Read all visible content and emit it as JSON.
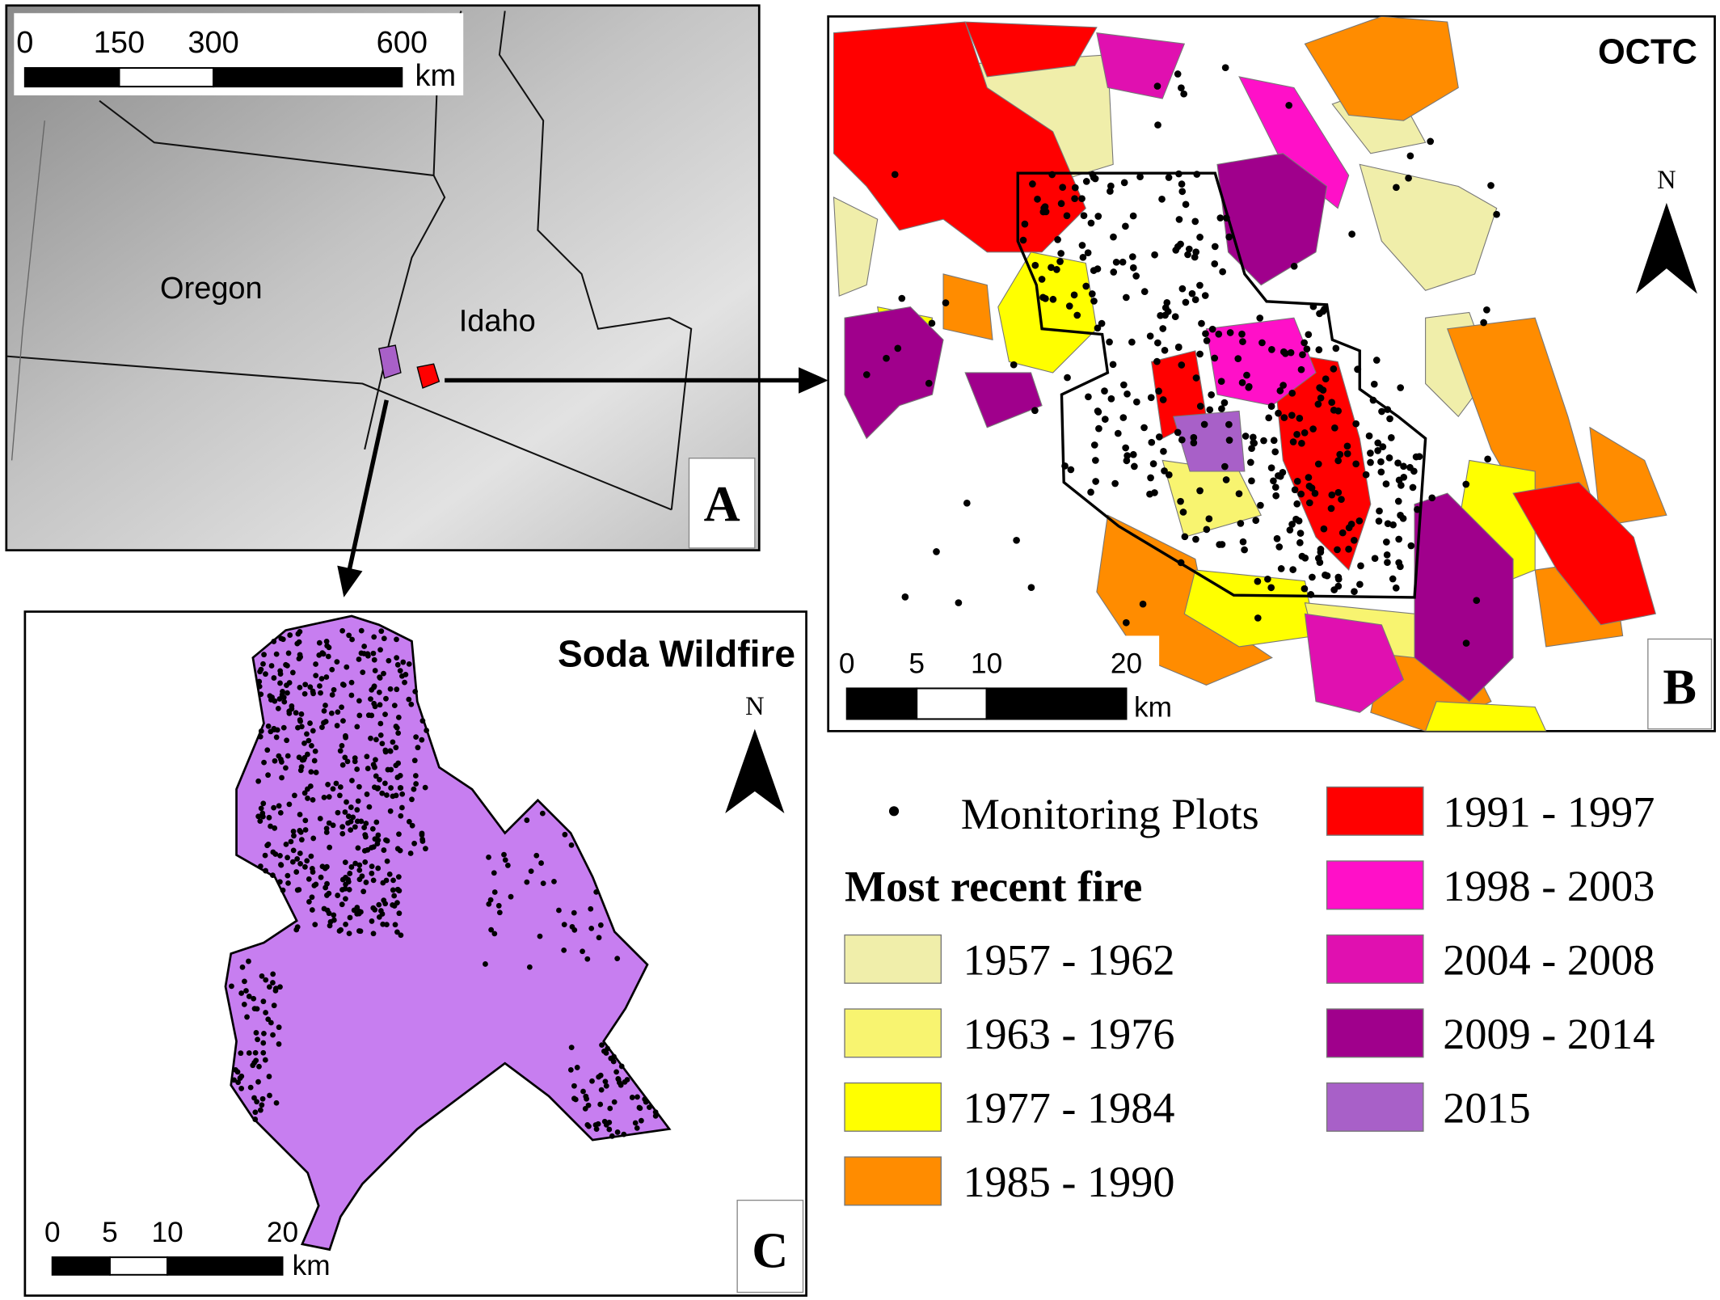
{
  "panel_a": {
    "label": "A",
    "places": [
      "Oregon",
      "Idaho"
    ],
    "scale_bar": {
      "ticks": [
        0,
        150,
        300,
        600
      ],
      "unit": "km"
    }
  },
  "panel_b": {
    "label": "B",
    "title": "OCTC",
    "north": "N",
    "scale_bar": {
      "ticks": [
        0,
        5,
        10,
        20
      ],
      "unit": "km"
    }
  },
  "panel_c": {
    "label": "C",
    "title": "Soda Wildfire",
    "north": "N",
    "scale_bar": {
      "ticks": [
        0,
        5,
        10,
        20
      ],
      "unit": "km"
    }
  },
  "legend": {
    "plots": "Monitoring Plots",
    "title": "Most recent fire",
    "items": [
      {
        "label": "1957 - 1962",
        "color": "#f0eeaa"
      },
      {
        "label": "1963 - 1976",
        "color": "#f8f470"
      },
      {
        "label": "1977 - 1984",
        "color": "#ffff00"
      },
      {
        "label": "1985 - 1990",
        "color": "#ff8c00"
      },
      {
        "label": "1991 - 1997",
        "color": "#ff0000"
      },
      {
        "label": "1998 - 2003",
        "color": "#ff10c8"
      },
      {
        "label": "2004 - 2008",
        "color": "#e010b0"
      },
      {
        "label": "2009 - 2014",
        "color": "#a0008c"
      },
      {
        "label": "2015",
        "color": "#a860c8"
      }
    ]
  }
}
